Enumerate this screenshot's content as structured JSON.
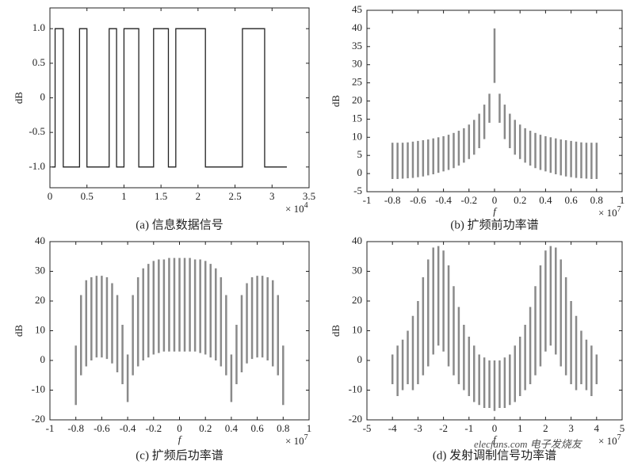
{
  "chart_data": [
    {
      "type": "line",
      "caption": "(a) 信息数据信号",
      "y_label": "dB",
      "x_multiplier": {
        "base": "× 10",
        "exponent": "4"
      },
      "xlim": [
        0,
        3.5
      ],
      "xticks": [
        0,
        0.5,
        1,
        1.5,
        2,
        2.5,
        3,
        3.5
      ],
      "ylim": [
        -1.3,
        1.3
      ],
      "yticks": [
        {
          "value": -1,
          "label": "-1.0"
        },
        -0.5,
        0,
        0.5,
        {
          "value": 1,
          "label": "1.0"
        }
      ],
      "color": "#222222",
      "x": [
        0.03,
        0.07,
        0.07,
        0.18,
        0.18,
        0.4,
        0.4,
        0.5,
        0.5,
        0.8,
        0.8,
        0.9,
        0.9,
        1.0,
        1.0,
        1.2,
        1.2,
        1.4,
        1.4,
        1.6,
        1.6,
        1.7,
        1.7,
        2.1,
        2.1,
        2.6,
        2.6,
        2.9,
        2.9,
        3.2
      ],
      "values": [
        -1,
        -1,
        1,
        1,
        -1,
        -1,
        1,
        1,
        -1,
        -1,
        1,
        1,
        -1,
        -1,
        1,
        1,
        -1,
        -1,
        1,
        1,
        -1,
        -1,
        1,
        1,
        -1,
        -1,
        1,
        1,
        -1,
        -1
      ]
    },
    {
      "type": "range",
      "caption": "(b) 扩频前功率谱",
      "y_label": "dB",
      "x_label": "f",
      "x_multiplier": {
        "base": "× 10",
        "exponent": "7"
      },
      "xlim": [
        -1,
        1
      ],
      "xticks": [
        -1,
        -0.8,
        -0.6,
        -0.4,
        -0.2,
        0,
        0.2,
        0.4,
        0.6,
        0.8,
        1
      ],
      "ylim": [
        -5,
        45
      ],
      "yticks": [
        -5,
        0,
        5,
        10,
        15,
        20,
        25,
        30,
        35,
        40,
        45
      ],
      "color": "#8a8a8a",
      "x": [
        -0.8,
        -0.76,
        -0.72,
        -0.68,
        -0.64,
        -0.6,
        -0.56,
        -0.52,
        -0.48,
        -0.44,
        -0.4,
        -0.36,
        -0.32,
        -0.28,
        -0.24,
        -0.2,
        -0.16,
        -0.12,
        -0.08,
        -0.04,
        0,
        0.04,
        0.08,
        0.12,
        0.16,
        0.2,
        0.24,
        0.28,
        0.32,
        0.36,
        0.4,
        0.44,
        0.48,
        0.52,
        0.56,
        0.6,
        0.64,
        0.68,
        0.72,
        0.76,
        0.8
      ],
      "high": [
        8.5,
        8.5,
        8.5,
        8.6,
        8.8,
        9,
        9.2,
        9.4,
        9.7,
        10,
        10.3,
        10.7,
        11.2,
        11.8,
        12.5,
        13.5,
        14.8,
        16.5,
        19,
        22,
        40,
        22,
        19,
        16.5,
        14.8,
        13.5,
        12.5,
        11.8,
        11.2,
        10.7,
        10.3,
        10,
        9.7,
        9.4,
        9.2,
        9,
        8.8,
        8.6,
        8.5,
        8.5,
        8.5
      ],
      "low": [
        -1.5,
        -1.5,
        -1.4,
        -1.3,
        -1.2,
        -1,
        -0.8,
        -0.5,
        -0.2,
        0.2,
        0.6,
        1,
        1.5,
        2.2,
        3,
        4,
        5.2,
        7,
        9.5,
        14,
        25,
        14,
        9.5,
        7,
        5.2,
        4,
        3,
        2.2,
        1.5,
        1,
        0.6,
        0.2,
        -0.2,
        -0.5,
        -0.8,
        -1,
        -1.2,
        -1.3,
        -1.4,
        -1.5,
        -1.5
      ]
    },
    {
      "type": "range",
      "caption": "(c) 扩频后功率谱",
      "y_label": "dB",
      "x_label": "f",
      "x_multiplier": {
        "base": "× 10",
        "exponent": "7"
      },
      "xlim": [
        -1,
        1
      ],
      "xticks": [
        -1,
        -0.8,
        -0.6,
        -0.4,
        -0.2,
        0,
        0.2,
        0.4,
        0.6,
        0.8,
        1
      ],
      "ylim": [
        -20,
        40
      ],
      "yticks": [
        -20,
        -10,
        0,
        10,
        20,
        30,
        40
      ],
      "color": "#8a8a8a",
      "x": [
        -0.8,
        -0.76,
        -0.72,
        -0.68,
        -0.64,
        -0.6,
        -0.56,
        -0.52,
        -0.48,
        -0.44,
        -0.4,
        -0.36,
        -0.32,
        -0.28,
        -0.24,
        -0.2,
        -0.16,
        -0.12,
        -0.08,
        -0.04,
        0,
        0.04,
        0.08,
        0.12,
        0.16,
        0.2,
        0.24,
        0.28,
        0.32,
        0.36,
        0.4,
        0.44,
        0.48,
        0.52,
        0.56,
        0.6,
        0.64,
        0.68,
        0.72,
        0.76,
        0.8
      ],
      "high": [
        5,
        22,
        27,
        28,
        28.5,
        28.5,
        28,
        26,
        22,
        12,
        2,
        22,
        28,
        31,
        32.5,
        33.5,
        34,
        34,
        34.5,
        34.5,
        34.5,
        34.5,
        34.5,
        34,
        34,
        33.5,
        32.5,
        31,
        28,
        22,
        2,
        12,
        22,
        26,
        28,
        28.5,
        28.5,
        28,
        27,
        22,
        5
      ],
      "low": [
        -15,
        -5,
        -2,
        0,
        1,
        1,
        0.5,
        -1,
        -4,
        -8,
        -14,
        -5,
        -2,
        0,
        1,
        2,
        2.5,
        3,
        3,
        3,
        3,
        3,
        3,
        3,
        2.5,
        2,
        1,
        0,
        -2,
        -5,
        -14,
        -8,
        -4,
        -1,
        0.5,
        1,
        1,
        0,
        -2,
        -5,
        -15
      ]
    },
    {
      "type": "range",
      "caption": "(d) 发射调制信号功率谱",
      "y_label": "dB",
      "x_label": "f",
      "x_multiplier": {
        "base": "× 10",
        "exponent": "7"
      },
      "watermark": "elecfans.com 电子发烧友",
      "xlim": [
        -5,
        5
      ],
      "xticks": [
        -5,
        -4,
        -3,
        -2,
        -1,
        0,
        1,
        2,
        3,
        4,
        5
      ],
      "ylim": [
        -20,
        40
      ],
      "yticks": [
        -20,
        -10,
        0,
        10,
        20,
        30,
        40
      ],
      "color": "#8a8a8a",
      "x": [
        -4,
        -3.8,
        -3.6,
        -3.4,
        -3.2,
        -3,
        -2.8,
        -2.6,
        -2.4,
        -2.2,
        -2,
        -1.8,
        -1.6,
        -1.4,
        -1.2,
        -1,
        -0.8,
        -0.6,
        -0.4,
        -0.2,
        0,
        0.2,
        0.4,
        0.6,
        0.8,
        1,
        1.2,
        1.4,
        1.6,
        1.8,
        2,
        2.2,
        2.4,
        2.6,
        2.8,
        3,
        3.2,
        3.4,
        3.6,
        3.8,
        4
      ],
      "high": [
        2,
        5,
        7,
        10,
        15,
        20,
        28,
        34,
        38,
        38.5,
        37,
        32,
        25,
        18,
        12,
        8,
        5,
        2,
        1,
        0,
        0,
        0,
        1,
        2,
        5,
        8,
        12,
        18,
        25,
        32,
        37,
        38.5,
        38,
        34,
        28,
        20,
        15,
        10,
        7,
        5,
        2
      ],
      "low": [
        -8,
        -12,
        -10,
        -8,
        -10,
        -8,
        -5,
        -2,
        2,
        5,
        3,
        -2,
        -5,
        -8,
        -10,
        -12,
        -14,
        -15,
        -16,
        -16,
        -17,
        -16,
        -16,
        -15,
        -14,
        -12,
        -10,
        -8,
        -5,
        -2,
        3,
        5,
        2,
        -2,
        -5,
        -8,
        -10,
        -8,
        -10,
        -12,
        -8
      ]
    }
  ]
}
